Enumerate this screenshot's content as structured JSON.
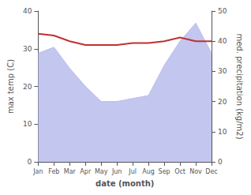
{
  "chart_data": {
    "type": "line",
    "categories": [
      "Jan",
      "Feb",
      "Mar",
      "Apr",
      "May",
      "Jun",
      "Jul",
      "Aug",
      "Sep",
      "Oct",
      "Nov",
      "Dec"
    ],
    "xlabel": "date (month)",
    "ylabel": "max temp (C)",
    "y2label": "med. precipitation (kg/m2)",
    "series": [
      {
        "type": "area",
        "axis": "y2",
        "color": "#b8bcec",
        "values": [
          36,
          38,
          31,
          25,
          20,
          20,
          21,
          22,
          32,
          40,
          46,
          36
        ]
      },
      {
        "type": "line",
        "color": "#c03030",
        "values": [
          34,
          33.5,
          32,
          31,
          31,
          31,
          31.5,
          31.5,
          32,
          33,
          32,
          32
        ]
      }
    ],
    "ylim": [
      0,
      40
    ],
    "yticks": [
      0,
      10,
      20,
      30,
      40
    ],
    "y2lim": [
      0,
      50
    ],
    "y2ticks": [
      0,
      10,
      20,
      30,
      40,
      50
    ],
    "grid": false
  }
}
